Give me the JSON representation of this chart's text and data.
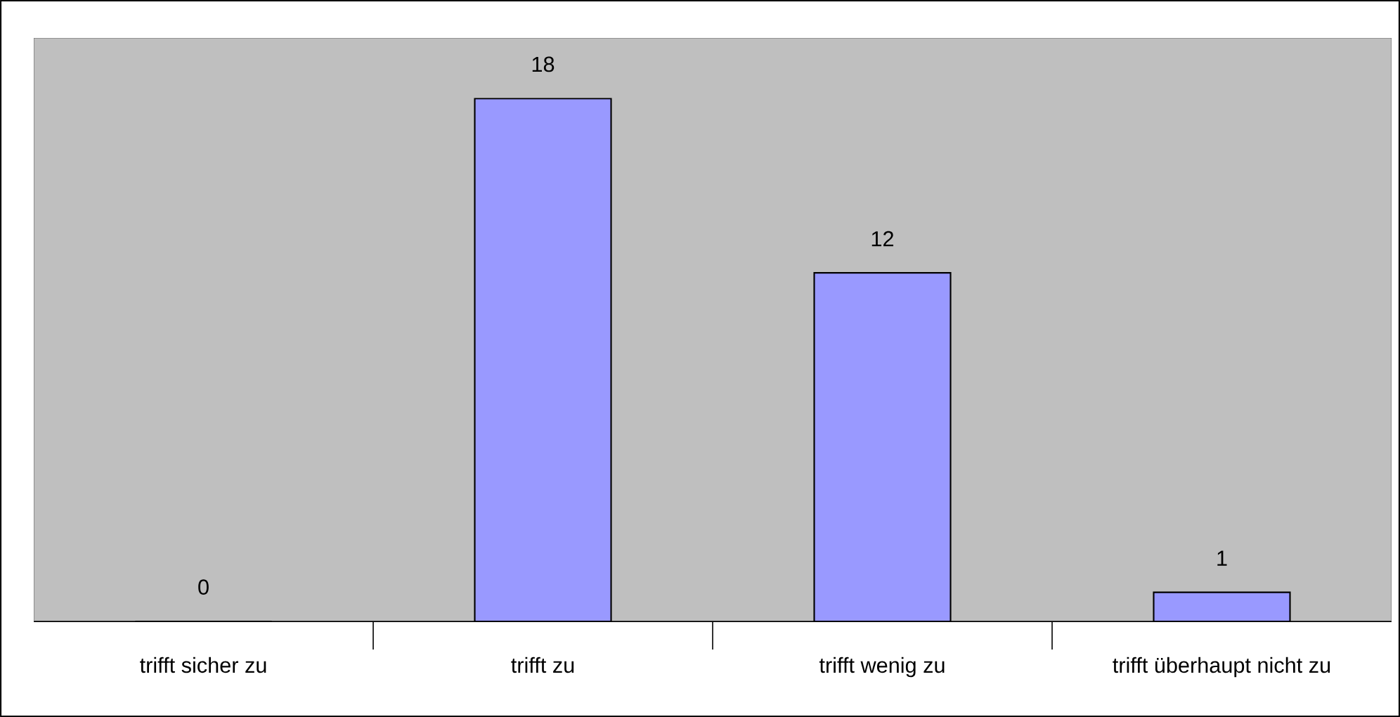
{
  "chart_data": {
    "type": "bar",
    "categories": [
      "trifft sicher zu",
      "trifft zu",
      "trifft wenig zu",
      "trifft überhaupt nicht zu"
    ],
    "values": [
      0,
      18,
      12,
      1
    ],
    "color": "#9999ff",
    "data_labels": true
  }
}
